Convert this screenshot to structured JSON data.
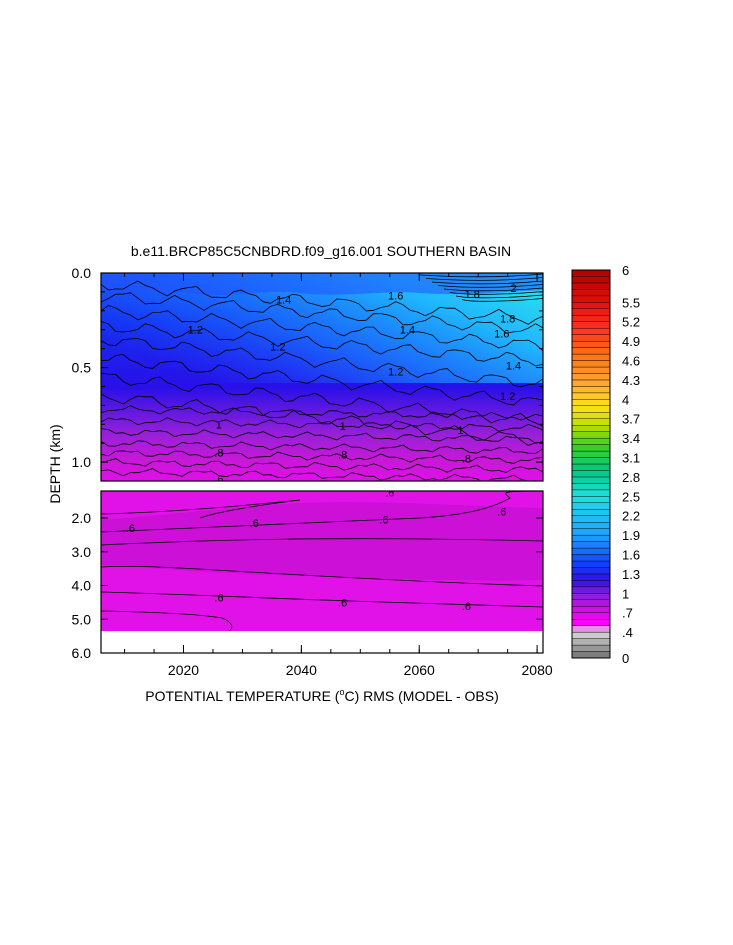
{
  "chart_data": {
    "type": "heatmap",
    "title": "b.e11.BRCP85C5CNBDRD.f09_g16.001 SOUTHERN BASIN",
    "xlabel_parts": [
      "POTENTIAL TEMPERATURE (",
      "o",
      "C) RMS (MODEL - OBS)"
    ],
    "ylabel": "DEPTH (km)",
    "x_range": [
      2006,
      2081
    ],
    "x_ticks": [
      "2020",
      "2040",
      "2060",
      "2080"
    ],
    "upper_panel": {
      "depth_range_km": [
        0.0,
        1.1
      ],
      "y_ticks": [
        "0.0",
        "0.5",
        "1.0"
      ],
      "layers": [
        {
          "depth_km": 0.0,
          "value": 1.4
        },
        {
          "depth_km": 0.3,
          "value": 1.3
        },
        {
          "depth_km": 0.65,
          "value": 1.1
        },
        {
          "depth_km": 0.8,
          "value": 0.95
        },
        {
          "depth_km": 0.95,
          "value": 0.75
        },
        {
          "depth_km": 1.1,
          "value": 0.65
        }
      ],
      "contour_labels": [
        {
          "text": "1.4",
          "x": 2037,
          "depth_km": 0.14
        },
        {
          "text": "1.6",
          "x": 2056,
          "depth_km": 0.12
        },
        {
          "text": "1.8",
          "x": 2069,
          "depth_km": 0.11
        },
        {
          "text": "2",
          "x": 2076,
          "depth_km": 0.08
        },
        {
          "text": "1.8",
          "x": 2075,
          "depth_km": 0.24
        },
        {
          "text": "1.6",
          "x": 2074,
          "depth_km": 0.32
        },
        {
          "text": "1.4",
          "x": 2058,
          "depth_km": 0.3
        },
        {
          "text": "1.2",
          "x": 2022,
          "depth_km": 0.3
        },
        {
          "text": "1.2",
          "x": 2036,
          "depth_km": 0.39
        },
        {
          "text": "1.2",
          "x": 2056,
          "depth_km": 0.52
        },
        {
          "text": "1.4",
          "x": 2076,
          "depth_km": 0.49
        },
        {
          "text": "1.2",
          "x": 2075,
          "depth_km": 0.65
        },
        {
          "text": "1",
          "x": 2026,
          "depth_km": 0.8
        },
        {
          "text": "1",
          "x": 2047,
          "depth_km": 0.81
        },
        {
          "text": "1",
          "x": 2067,
          "depth_km": 0.83
        },
        {
          "text": ".8",
          "x": 2026,
          "depth_km": 0.95
        },
        {
          "text": ".8",
          "x": 2047,
          "depth_km": 0.96
        },
        {
          "text": ".8",
          "x": 2068,
          "depth_km": 0.98
        },
        {
          "text": ".6",
          "x": 2026,
          "depth_km": 1.09
        }
      ]
    },
    "lower_panel": {
      "depth_range_km": [
        1.2,
        6.0
      ],
      "data_bottom_km": 5.35,
      "y_ticks": [
        "2.0",
        "3.0",
        "4.0",
        "5.0",
        "6.0"
      ],
      "value": 0.62,
      "contour_labels": [
        {
          "text": ".6",
          "x": 2055,
          "depth_km": 1.25
        },
        {
          "text": ".6",
          "x": 2074,
          "depth_km": 1.8
        },
        {
          "text": ".6",
          "x": 2011,
          "depth_km": 2.3
        },
        {
          "text": ".6",
          "x": 2032,
          "depth_km": 2.15
        },
        {
          "text": ".6",
          "x": 2054,
          "depth_km": 2.05
        },
        {
          "text": ".6",
          "x": 2026,
          "depth_km": 4.35
        },
        {
          "text": ".6",
          "x": 2047,
          "depth_km": 4.5
        },
        {
          "text": ".6",
          "x": 2068,
          "depth_km": 4.6
        }
      ]
    },
    "colorbar": {
      "min": 0,
      "max": 6,
      "labels": [
        {
          "text": "6",
          "value": 6.0
        },
        {
          "text": "5.5",
          "value": 5.5
        },
        {
          "text": "5.2",
          "value": 5.2
        },
        {
          "text": "4.9",
          "value": 4.9
        },
        {
          "text": "4.6",
          "value": 4.6
        },
        {
          "text": "4.3",
          "value": 4.3
        },
        {
          "text": "4",
          "value": 4.0
        },
        {
          "text": "3.7",
          "value": 3.7
        },
        {
          "text": "3.4",
          "value": 3.4
        },
        {
          "text": "3.1",
          "value": 3.1
        },
        {
          "text": "2.8",
          "value": 2.8
        },
        {
          "text": "2.5",
          "value": 2.5
        },
        {
          "text": "2.2",
          "value": 2.2
        },
        {
          "text": "1.9",
          "value": 1.9
        },
        {
          "text": "1.6",
          "value": 1.6
        },
        {
          "text": "1.3",
          "value": 1.3
        },
        {
          "text": "1",
          "value": 1.0
        },
        {
          "text": ".7",
          "value": 0.7
        },
        {
          "text": ".4",
          "value": 0.4
        },
        {
          "text": "0",
          "value": 0.0
        }
      ],
      "color_stops": [
        {
          "value": 0.0,
          "color": "#707070"
        },
        {
          "value": 0.4,
          "color": "#d8d8d8"
        },
        {
          "value": 0.55,
          "color": "#ff00ff"
        },
        {
          "value": 0.75,
          "color": "#d010e0"
        },
        {
          "value": 1.0,
          "color": "#8020e0"
        },
        {
          "value": 1.2,
          "color": "#3010e8"
        },
        {
          "value": 1.45,
          "color": "#1040ff"
        },
        {
          "value": 1.9,
          "color": "#20a0ff"
        },
        {
          "value": 2.5,
          "color": "#20e0e0"
        },
        {
          "value": 2.9,
          "color": "#00c880"
        },
        {
          "value": 3.3,
          "color": "#40d020"
        },
        {
          "value": 3.6,
          "color": "#c0e000"
        },
        {
          "value": 3.9,
          "color": "#ffe020"
        },
        {
          "value": 4.3,
          "color": "#ffa030"
        },
        {
          "value": 4.7,
          "color": "#ff7010"
        },
        {
          "value": 5.1,
          "color": "#ff3020"
        },
        {
          "value": 5.5,
          "color": "#e01010"
        },
        {
          "value": 6.0,
          "color": "#b00000"
        }
      ]
    },
    "grid": false
  }
}
